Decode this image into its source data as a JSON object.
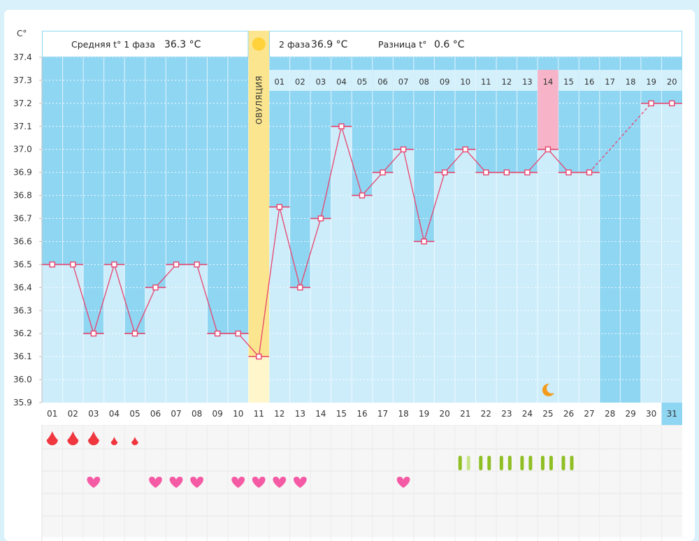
{
  "unit_label": "C°",
  "header": {
    "phase1_label": "Средняя t° 1 фаза",
    "phase1_value": "36.3 °C",
    "phase2_label": "2 фаза",
    "phase2_value": "36.9 °C",
    "diff_label": "Разница t°",
    "diff_value": "0.6 °C",
    "ovulation_label": "ОВУЛЯЦИЯ"
  },
  "colors": {
    "band": "#8fd6f3",
    "column": "#cdedfb",
    "highlight": "#f7b4c8",
    "line": "#e8436c",
    "ovulation": "#fbe58e",
    "sun": "#ffd23c",
    "moon": "#f39c1b",
    "blood": "#f0363f",
    "heart": "#f55aa5",
    "sign_strong": "#8fbf24",
    "sign_weak": "#c8e38a"
  },
  "chart_data": {
    "type": "line",
    "title": "",
    "ylabel": "C°",
    "ylim": [
      35.9,
      37.4
    ],
    "y_ticks": [
      "35.9",
      "36.0",
      "36.1",
      "36.2",
      "36.3",
      "36.4",
      "36.5",
      "36.6",
      "36.7",
      "36.8",
      "36.9",
      "37.0",
      "37.1",
      "37.2",
      "37.3",
      "37.4"
    ],
    "days": [
      "01",
      "02",
      "03",
      "04",
      "05",
      "06",
      "07",
      "08",
      "09",
      "10",
      "11",
      "12",
      "13",
      "14",
      "15",
      "16",
      "17",
      "18",
      "19",
      "20",
      "21",
      "22",
      "23",
      "24",
      "25",
      "26",
      "27",
      "28",
      "29",
      "30",
      "31"
    ],
    "temperatures": [
      36.5,
      36.5,
      36.2,
      36.5,
      36.2,
      36.4,
      36.5,
      36.5,
      36.2,
      36.2,
      36.1,
      36.75,
      36.4,
      36.7,
      37.1,
      36.8,
      36.9,
      37.0,
      36.6,
      36.9,
      37.0,
      36.9,
      36.9,
      36.9,
      37.0,
      36.9,
      36.9,
      null,
      null,
      37.2,
      37.2
    ],
    "phase2_days": [
      "01",
      "02",
      "03",
      "04",
      "05",
      "06",
      "07",
      "08",
      "09",
      "10",
      "11",
      "12",
      "13",
      "14",
      "15",
      "16",
      "17",
      "18",
      "19",
      "20"
    ],
    "ovulation_day": "11",
    "highlight_phase2_day": "14",
    "today": "31",
    "moon_day": "25",
    "dashed_from": "27",
    "dashed_to": "30",
    "markers": {
      "period": [
        1.0,
        1.0,
        1.0,
        0.6,
        0.6,
        0,
        0,
        0,
        0,
        0,
        0,
        0,
        0,
        0,
        0,
        0,
        0,
        0,
        0,
        0,
        0,
        0,
        0,
        0,
        0,
        0,
        0,
        0,
        0,
        0,
        0
      ],
      "sign": [
        0,
        0,
        0,
        0,
        0,
        0,
        0,
        0,
        0,
        0,
        0,
        0,
        0,
        0,
        0,
        0,
        0,
        0,
        0,
        0,
        1,
        1,
        1,
        1,
        1,
        1,
        0,
        0,
        0,
        0,
        0
      ],
      "heart": [
        0,
        0,
        1,
        0,
        0,
        1,
        1,
        1,
        0,
        1,
        1,
        1,
        1,
        0,
        0,
        0,
        0,
        1,
        0,
        0,
        0,
        0,
        0,
        0,
        0,
        0,
        0,
        0,
        0,
        0,
        0
      ]
    }
  }
}
